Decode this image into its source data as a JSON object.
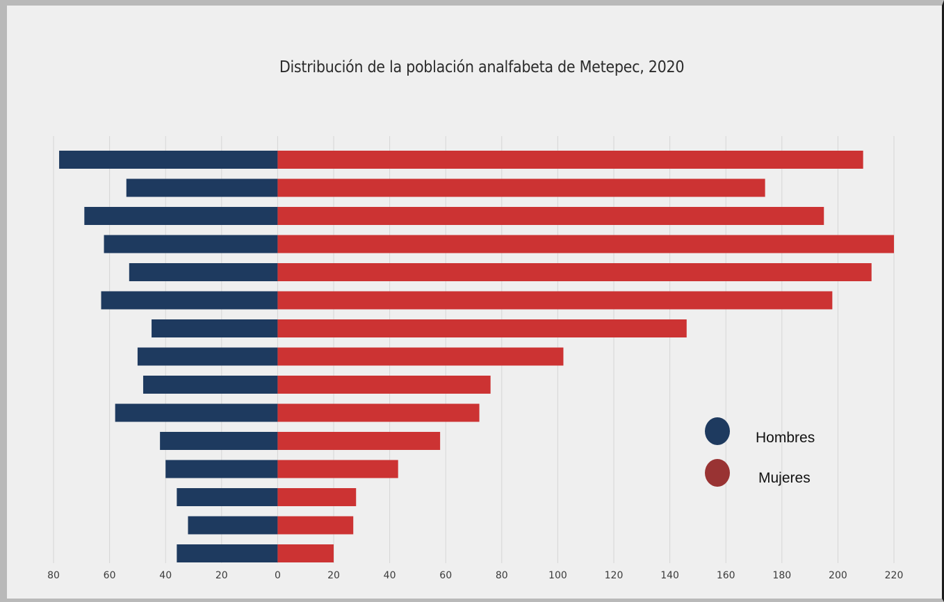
{
  "chart_data": {
    "type": "bar",
    "title": "Distribución de la población analfabeta de Metepec, 2020",
    "xlabel": "",
    "ylabel": "",
    "xlim": [
      -80,
      220
    ],
    "x_ticks": [
      -80,
      -60,
      -40,
      -20,
      0,
      20,
      40,
      60,
      80,
      100,
      120,
      140,
      160,
      180,
      200,
      220
    ],
    "x_tick_labels": [
      "80",
      "60",
      "40",
      "20",
      "0",
      "20",
      "40",
      "60",
      "80",
      "100",
      "120",
      "140",
      "160",
      "180",
      "200",
      "220"
    ],
    "grid": true,
    "legend_position": "bottom-right",
    "series": [
      {
        "name": "Hombres",
        "color": "#1e3a5f",
        "values": [
          78,
          54,
          69,
          62,
          53,
          63,
          45,
          50,
          48,
          58,
          42,
          40,
          36,
          32,
          36
        ]
      },
      {
        "name": "Mujeres",
        "color": "#cc3333",
        "values": [
          209,
          174,
          195,
          220,
          212,
          198,
          146,
          102,
          76,
          72,
          58,
          43,
          28,
          27,
          20
        ]
      }
    ]
  },
  "legend": {
    "items": [
      {
        "label": "Hombres",
        "color": "#1e3a5f"
      },
      {
        "label": "Mujeres",
        "color": "#993333"
      }
    ]
  }
}
